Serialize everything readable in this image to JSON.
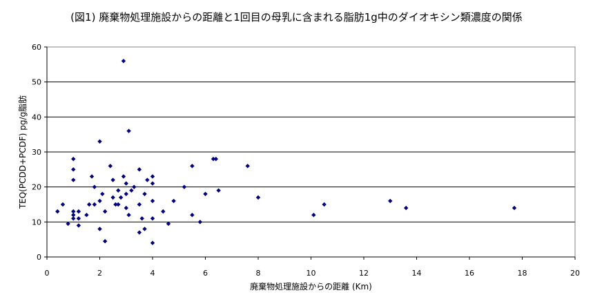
{
  "chart_data": {
    "type": "scatter",
    "title": "(図1) 廃棄物処理施設からの距離と1回目の母乳に含まれる脂肪1g中のダイオキシン類濃度の関係",
    "xlabel": "廃棄物処理施設からの距離 (Km)",
    "ylabel": "TEQ(PCDD+PCDF) pg/g脂肪",
    "xlim": [
      0,
      20
    ],
    "ylim": [
      0,
      60
    ],
    "xticks": [
      0,
      2,
      4,
      6,
      8,
      10,
      12,
      14,
      16,
      18,
      20
    ],
    "yticks": [
      0,
      10,
      20,
      30,
      40,
      50,
      60
    ],
    "grid": "horizontal",
    "marker": "diamond",
    "marker_color": "#000080",
    "points": [
      [
        0.4,
        13
      ],
      [
        0.6,
        15
      ],
      [
        0.8,
        9.5
      ],
      [
        1.0,
        28
      ],
      [
        1.0,
        25
      ],
      [
        1.0,
        22
      ],
      [
        1.0,
        13
      ],
      [
        1.0,
        12
      ],
      [
        1.0,
        11
      ],
      [
        1.2,
        13
      ],
      [
        1.2,
        11
      ],
      [
        1.2,
        9
      ],
      [
        1.5,
        12
      ],
      [
        1.6,
        15
      ],
      [
        1.7,
        23
      ],
      [
        1.8,
        20
      ],
      [
        1.8,
        15
      ],
      [
        2.0,
        33
      ],
      [
        2.0,
        16
      ],
      [
        2.0,
        8
      ],
      [
        2.1,
        18
      ],
      [
        2.2,
        13
      ],
      [
        2.2,
        4.5
      ],
      [
        2.4,
        26
      ],
      [
        2.5,
        22
      ],
      [
        2.5,
        17
      ],
      [
        2.6,
        15
      ],
      [
        2.7,
        19
      ],
      [
        2.7,
        15
      ],
      [
        2.8,
        17
      ],
      [
        2.9,
        56
      ],
      [
        2.9,
        23
      ],
      [
        3.0,
        21
      ],
      [
        3.0,
        18
      ],
      [
        3.0,
        14
      ],
      [
        3.1,
        36
      ],
      [
        3.1,
        12
      ],
      [
        3.2,
        19
      ],
      [
        3.3,
        20
      ],
      [
        3.5,
        25
      ],
      [
        3.5,
        15
      ],
      [
        3.5,
        7
      ],
      [
        3.6,
        11
      ],
      [
        3.7,
        18
      ],
      [
        3.7,
        8
      ],
      [
        3.8,
        22
      ],
      [
        4.0,
        23
      ],
      [
        4.0,
        21
      ],
      [
        4.0,
        16
      ],
      [
        4.0,
        11
      ],
      [
        4.0,
        4
      ],
      [
        4.4,
        13
      ],
      [
        4.6,
        9.5
      ],
      [
        4.8,
        16
      ],
      [
        5.2,
        20
      ],
      [
        5.5,
        26
      ],
      [
        5.5,
        12
      ],
      [
        5.8,
        10
      ],
      [
        6.0,
        18
      ],
      [
        6.3,
        28
      ],
      [
        6.4,
        28
      ],
      [
        6.5,
        19
      ],
      [
        7.6,
        26
      ],
      [
        8.0,
        17
      ],
      [
        10.1,
        12
      ],
      [
        10.5,
        15
      ],
      [
        13.0,
        16
      ],
      [
        13.6,
        14
      ],
      [
        17.7,
        14
      ]
    ]
  }
}
